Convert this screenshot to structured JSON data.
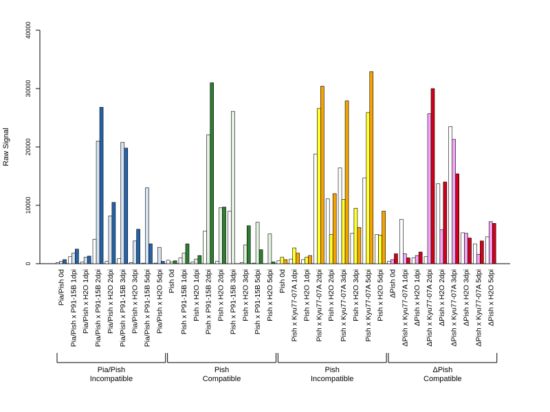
{
  "chart_data": {
    "type": "bar",
    "ylabel": "Raw Signal",
    "ylim": [
      0,
      40000
    ],
    "y_ticks": [
      "0",
      "10000",
      "20000",
      "30000",
      "40000"
    ],
    "categories": [
      "Pia/Pish 0d",
      "Pia/Pish x P91-15B 1dpi",
      "Pia/Pish x H2O 1dpi",
      "Pia/Pish x P91-15B 2dpi",
      "Pia/Pish x H2O 2dpi",
      "Pia/Pish x P91-15B 3dpi",
      "Pia/Pish x H2O 3dpi",
      "Pia/Pish x P91-15B 5dpi",
      "Pia/Pish x H2O 5dpi",
      "Pish 0d",
      "Pish x P91-15B 1dpi",
      "Pish x H2O 1dpi",
      "Pish x P91-15B 2dpi",
      "Pish x H2O 2dpi",
      "Pish x P91-15B 3dpi",
      "Pish x H2O 3dpi",
      "Pish x P91-15B 5dpi",
      "Pish x H2O 5dpi",
      "Pish 0d",
      "Pish x Kyu77-07A 1dpi",
      "Pish x H2O 1dpi",
      "Pish x Kyu77-07A 2dpi",
      "Pish x H2O 2dpi",
      "Pish x Kyu77-07A 3dpi",
      "Pish x H2O 3dpi",
      "Pish x Kyu77-07A 5dpi",
      "Pish x H2O 5dpi",
      "ΔPish 0d",
      "ΔPish x Kyu77-07A 1dpi",
      "ΔPish x H2O 1dpi",
      "ΔPish x Kyu77-07A 2dpi",
      "ΔPish x H2O 2dpi",
      "ΔPish x Kyu77-07A 3dpi",
      "ΔPish x H2O 3dpi",
      "ΔPish x Kyu77-07A 5dpi",
      "ΔPish x H2O 5dpi"
    ],
    "values": [
      [
        200,
        400,
        700
      ],
      [
        1200,
        1800,
        2500
      ],
      [
        300,
        1100,
        1300
      ],
      [
        4200,
        21000,
        26800
      ],
      [
        400,
        8200,
        10500
      ],
      [
        900,
        20800,
        19800
      ],
      [
        200,
        3900,
        5900
      ],
      [
        100,
        13000,
        3400
      ],
      [
        100,
        2800,
        400
      ],
      [
        600,
        300,
        500
      ],
      [
        1000,
        1800,
        3400
      ],
      [
        300,
        800,
        1400
      ],
      [
        5600,
        22100,
        31000
      ],
      [
        400,
        9600,
        9700
      ],
      [
        9000,
        26100,
        0
      ],
      [
        200,
        3200,
        6500
      ],
      [
        100,
        7100,
        2400
      ],
      [
        0,
        5100,
        300
      ],
      [
        500,
        1100,
        700
      ],
      [
        800,
        2700,
        1800
      ],
      [
        700,
        1100,
        1400
      ],
      [
        18800,
        26600,
        30400
      ],
      [
        11100,
        5000,
        12000
      ],
      [
        16400,
        11000,
        27900
      ],
      [
        5200,
        9500,
        6200
      ],
      [
        14700,
        25900,
        32900
      ],
      [
        5000,
        4900,
        9000
      ],
      [
        400,
        700,
        1700
      ],
      [
        7600,
        1700,
        1000
      ],
      [
        1000,
        1400,
        2000
      ],
      [
        1200,
        25700,
        30000
      ],
      [
        13700,
        5800,
        14000
      ],
      [
        23500,
        21300,
        15400
      ],
      [
        5300,
        5200,
        4400
      ],
      [
        3400,
        1600,
        3900
      ],
      [
        4600,
        7200,
        6900
      ]
    ],
    "groups": [
      {
        "label": "Pia/Pish",
        "sublabel": "Incompatible",
        "first": 0,
        "last": 8,
        "color_dark": "#2563a8",
        "color_light": "#d6e4f2"
      },
      {
        "label": "Pish",
        "sublabel": "Compatible",
        "first": 9,
        "last": 17,
        "color_dark": "#2e7d32",
        "color_light": "#e3f1e0"
      },
      {
        "label": "Pish",
        "sublabel": "Incompatible",
        "first": 18,
        "last": 26,
        "color_dark": "#f5a300",
        "color_light": "#ffff33"
      },
      {
        "label": "ΔPish",
        "sublabel": "Compatible",
        "first": 27,
        "last": 35,
        "color_dark": "#d0021b",
        "color_light": "#f3a6f3"
      }
    ],
    "legend": "none",
    "grid": false
  }
}
